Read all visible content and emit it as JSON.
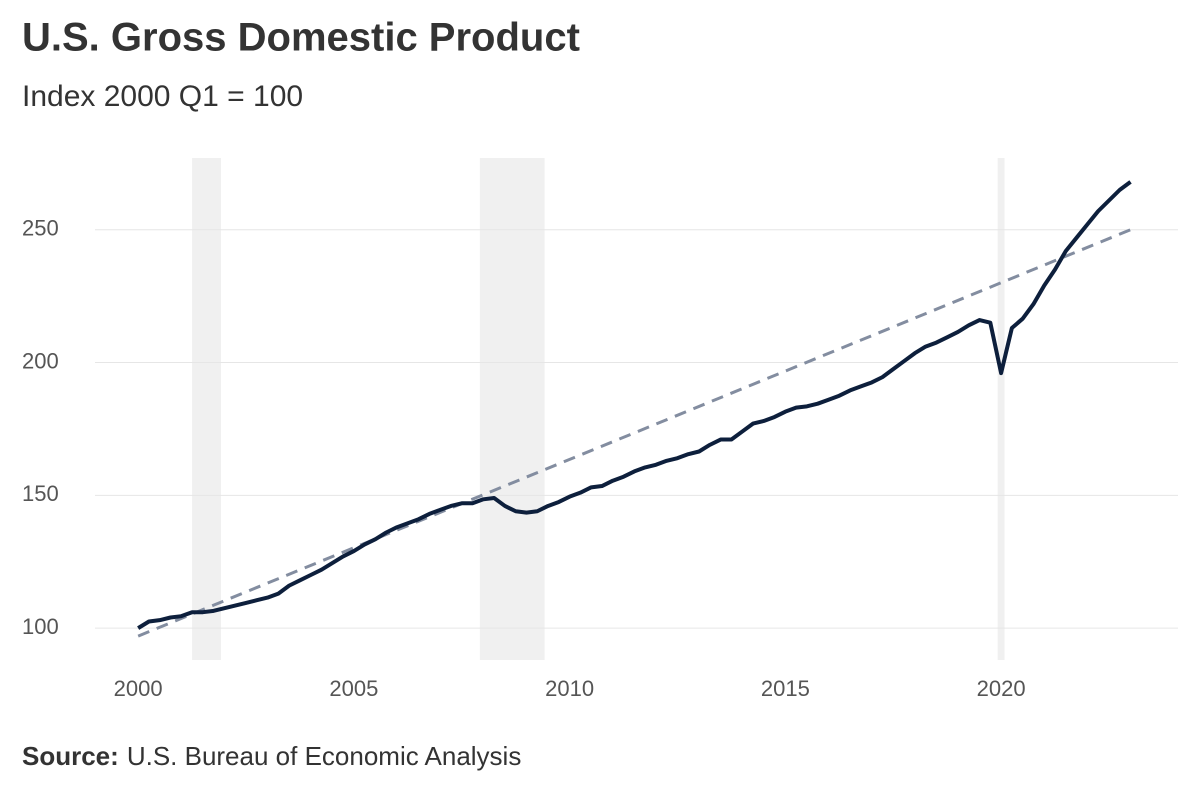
{
  "chart_data": {
    "type": "line",
    "title": "U.S. Gross Domestic Product",
    "subtitle": "Index 2000 Q1 = 100",
    "source_label": "Source:",
    "source": "U.S. Bureau of Economic Analysis",
    "x": [
      2000,
      2000.25,
      2000.5,
      2000.75,
      2001,
      2001.25,
      2001.5,
      2001.75,
      2002,
      2002.25,
      2002.5,
      2002.75,
      2003,
      2003.25,
      2003.5,
      2003.75,
      2004,
      2004.25,
      2004.5,
      2004.75,
      2005,
      2005.25,
      2005.5,
      2005.75,
      2006,
      2006.25,
      2006.5,
      2006.75,
      2007,
      2007.25,
      2007.5,
      2007.75,
      2008,
      2008.25,
      2008.5,
      2008.75,
      2009,
      2009.25,
      2009.5,
      2009.75,
      2010,
      2010.25,
      2010.5,
      2010.75,
      2011,
      2011.25,
      2011.5,
      2011.75,
      2012,
      2012.25,
      2012.5,
      2012.75,
      2013,
      2013.25,
      2013.5,
      2013.75,
      2014,
      2014.25,
      2014.5,
      2014.75,
      2015,
      2015.25,
      2015.5,
      2015.75,
      2016,
      2016.25,
      2016.5,
      2016.75,
      2017,
      2017.25,
      2017.5,
      2017.75,
      2018,
      2018.25,
      2018.5,
      2018.75,
      2019,
      2019.25,
      2019.5,
      2019.75,
      2020,
      2020.25,
      2020.5,
      2020.75,
      2021,
      2021.25,
      2021.5,
      2021.75,
      2022,
      2022.25,
      2022.5,
      2022.75,
      2023
    ],
    "series": [
      {
        "color": "#0d1f3c",
        "values": [
          100,
          102.5,
          103,
          104,
          104.5,
          106,
          106,
          106.5,
          107.5,
          108.5,
          109.5,
          110.5,
          111.5,
          113,
          116,
          118,
          120,
          122,
          124.5,
          127,
          129,
          131.5,
          133.5,
          136,
          138,
          139.5,
          141,
          143,
          144.5,
          146,
          147,
          147,
          148.5,
          149,
          146,
          144,
          143.5,
          144,
          146,
          147.5,
          149.5,
          151,
          153,
          153.5,
          155.5,
          157,
          159,
          160.5,
          161.5,
          163,
          164,
          165.5,
          166.5,
          169,
          171,
          171,
          174,
          177,
          178,
          179.5,
          181.5,
          183,
          183.5,
          184.5,
          186,
          187.5,
          189.5,
          191,
          192.5,
          194.5,
          197.5,
          200.5,
          203.5,
          206,
          207.5,
          209.5,
          211.5,
          214,
          216,
          215,
          196,
          213,
          216.5,
          222,
          229,
          235,
          242,
          247,
          252,
          257,
          261,
          265,
          268
        ]
      }
    ],
    "trend": {
      "x": [
        2000,
        2023
      ],
      "values": [
        97,
        250
      ],
      "color": "#838da0",
      "dashed": true
    },
    "recessions": [
      [
        2001.25,
        2001.92
      ],
      [
        2007.92,
        2009.42
      ],
      [
        2019.92,
        2020.08
      ]
    ],
    "recession_color": "#f0f0f0",
    "xlim": [
      1999,
      2024.1
    ],
    "xticks": [
      2000,
      2005,
      2010,
      2015,
      2020
    ],
    "ylim": [
      88,
      277
    ],
    "yticks": [
      100,
      150,
      200,
      250
    ],
    "grid": true
  }
}
